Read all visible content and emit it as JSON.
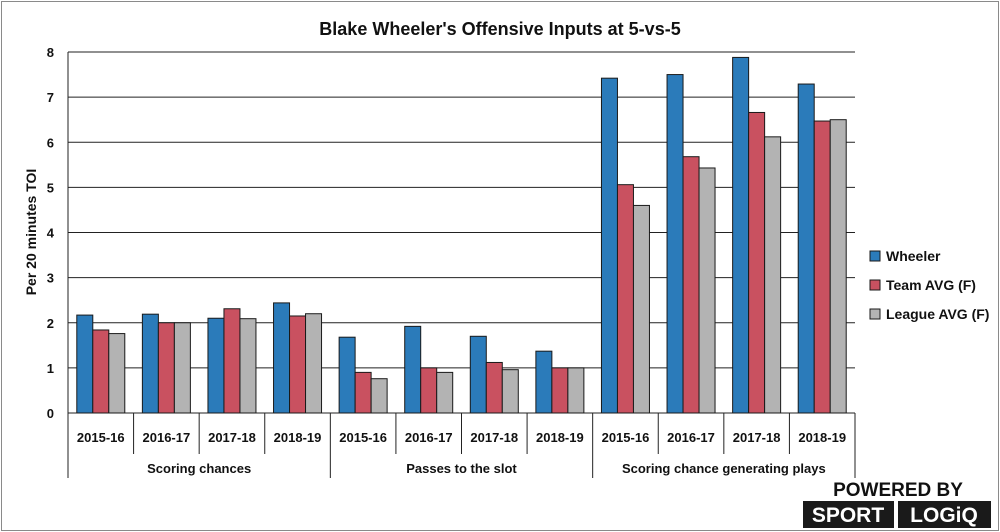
{
  "chart_data": {
    "type": "bar",
    "title": "Blake Wheeler's Offensive Inputs at 5-vs-5",
    "ylabel": "Per 20 minutes TOI",
    "xlabel": "",
    "ylim": [
      0,
      8
    ],
    "yticks": [
      0,
      1,
      2,
      3,
      4,
      5,
      6,
      7,
      8
    ],
    "grid": true,
    "legend_position": "right",
    "groups": [
      {
        "label": "Scoring chances",
        "categories": [
          "2015-16",
          "2016-17",
          "2017-18",
          "2018-19"
        ]
      },
      {
        "label": "Passes to the slot",
        "categories": [
          "2015-16",
          "2016-17",
          "2017-18",
          "2018-19"
        ]
      },
      {
        "label": "Scoring chance generating plays",
        "categories": [
          "2015-16",
          "2016-17",
          "2017-18",
          "2018-19"
        ]
      }
    ],
    "series": [
      {
        "name": "Wheeler",
        "color": "#2b7bba",
        "values": [
          2.17,
          2.19,
          2.1,
          2.44,
          1.68,
          1.92,
          1.7,
          1.37,
          7.42,
          7.5,
          7.88,
          7.29
        ]
      },
      {
        "name": "Team AVG (F)",
        "color": "#c95160",
        "values": [
          1.84,
          2.0,
          2.31,
          2.15,
          0.9,
          1.0,
          1.12,
          1.0,
          5.06,
          5.68,
          6.66,
          6.47
        ]
      },
      {
        "name": "League AVG (F)",
        "color": "#b3b3b3",
        "values": [
          1.76,
          2.0,
          2.09,
          2.2,
          0.76,
          0.9,
          0.96,
          1.0,
          4.6,
          5.43,
          6.12,
          6.5
        ]
      }
    ]
  },
  "branding": {
    "powered_by": "POWERED BY",
    "brand_left": "SPORT",
    "brand_right": "LOGiQ"
  }
}
